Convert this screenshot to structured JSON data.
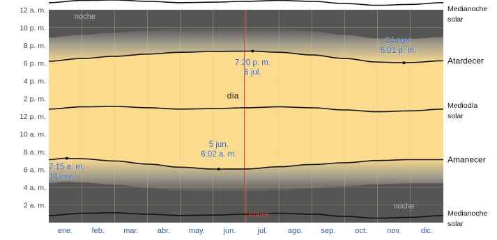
{
  "chart_data": {
    "type": "area",
    "title": "",
    "xlabel": "",
    "ylabel": "",
    "ylim": [
      0,
      24
    ],
    "grid": true,
    "x_labels": [
      "ene.",
      "feb.",
      "mar.",
      "abr.",
      "may.",
      "jun.",
      "jul.",
      "ago.",
      "sep.",
      "oct.",
      "nov.",
      "dic."
    ],
    "y_ticks": [
      {
        "hour": 2,
        "label": "2 a. m."
      },
      {
        "hour": 4,
        "label": "4 a. m."
      },
      {
        "hour": 6,
        "label": "6 a. m."
      },
      {
        "hour": 8,
        "label": "8 a. m."
      },
      {
        "hour": 10,
        "label": "10 a. m."
      },
      {
        "hour": 12,
        "label": "12 p. m."
      },
      {
        "hour": 14,
        "label": "2 p. m."
      },
      {
        "hour": 16,
        "label": "4 p. m."
      },
      {
        "hour": 18,
        "label": "6 p. m."
      },
      {
        "hour": 20,
        "label": "8 p. m."
      },
      {
        "hour": 22,
        "label": "10 p. m."
      },
      {
        "hour": 24,
        "label": "12 a. m."
      }
    ],
    "series": [
      {
        "name": "Amanecer",
        "label_lines": [
          "Amanecer"
        ],
        "x": [
          0,
          0.5,
          1,
          2,
          3,
          4,
          5,
          6,
          7,
          8,
          9,
          10,
          11,
          12
        ],
        "values": [
          7.1,
          7.25,
          7.2,
          6.95,
          6.6,
          6.25,
          6.04,
          6.05,
          6.3,
          6.55,
          6.75,
          7.0,
          7.1,
          7.1
        ]
      },
      {
        "name": "Mediodía solar",
        "label_lines": [
          "Mediodía",
          "solar"
        ],
        "x": [
          0,
          1,
          2,
          3,
          4,
          5,
          6,
          7,
          8,
          9,
          10,
          11,
          12
        ],
        "values": [
          12.8,
          13.05,
          13.1,
          12.95,
          12.8,
          12.85,
          12.95,
          13.05,
          12.95,
          12.7,
          12.5,
          12.6,
          12.8
        ]
      },
      {
        "name": "Atardecer",
        "label_lines": [
          "Atardecer"
        ],
        "x": [
          0,
          1,
          2,
          3,
          4,
          5,
          6,
          6.2,
          7,
          8,
          9,
          10,
          10.8,
          11,
          12
        ],
        "values": [
          18.2,
          18.5,
          18.75,
          19.0,
          19.2,
          19.3,
          19.33,
          19.33,
          19.2,
          18.9,
          18.5,
          18.1,
          18.02,
          18.05,
          18.25
        ]
      },
      {
        "name": "Medianoche solar",
        "label_lines": [
          "Medianoche",
          "solar"
        ],
        "x": [
          0,
          1,
          2,
          3,
          4,
          5,
          6,
          7,
          8,
          9,
          10,
          11,
          12
        ],
        "values": [
          24.8,
          25.05,
          25.1,
          24.95,
          24.8,
          24.85,
          24.95,
          25.05,
          24.95,
          24.7,
          24.5,
          24.6,
          24.8
        ]
      },
      {
        "name": "Medianoche solar",
        "label_lines": [
          "Medianoche",
          "solar"
        ],
        "x": [
          0,
          1,
          2,
          3,
          4,
          5,
          6,
          7,
          8,
          9,
          10,
          11,
          12
        ],
        "values": [
          0.8,
          1.05,
          1.1,
          0.95,
          0.8,
          0.85,
          0.95,
          1.05,
          0.95,
          0.7,
          0.5,
          0.6,
          0.8
        ]
      }
    ],
    "annotations": [
      {
        "x": 0.55,
        "y": 7.25,
        "lines": [
          "7:15 a. m.",
          "18 ene."
        ],
        "anchor": "start",
        "dx": -26,
        "dy": 16
      },
      {
        "x": 5.17,
        "y": 6.04,
        "lines": [
          "5 jun.",
          "6:02 a. m."
        ],
        "anchor": "middle",
        "dx": 0,
        "dy": -32
      },
      {
        "x": 6.2,
        "y": 19.33,
        "lines": [
          "7:20 p. m.",
          "6 jul."
        ],
        "anchor": "middle",
        "dx": 0,
        "dy": 20
      },
      {
        "x": 10.8,
        "y": 18.02,
        "lines": [
          "24 nov.",
          "6:01 p. m."
        ],
        "anchor": "middle",
        "dx": -8,
        "dy": -28
      }
    ],
    "region_labels": [
      {
        "text": "noche",
        "x": 1.1,
        "y": 23.0
      },
      {
        "text": "día",
        "x": 5.6,
        "y": 14.0
      },
      {
        "text": "noche",
        "x": 10.8,
        "y": 1.6
      }
    ],
    "now_marker": {
      "x": 5.95,
      "label": "Ahora"
    },
    "colors": {
      "day": "#FBDB8E",
      "night": "#555555",
      "twilight": "#9E9A8C",
      "curve": "#111111",
      "annotation": "#2B5BA8",
      "now": "#D43A3A",
      "tick": "#444444",
      "month": "#2B5BA8",
      "grid": "#E6C77E"
    }
  }
}
